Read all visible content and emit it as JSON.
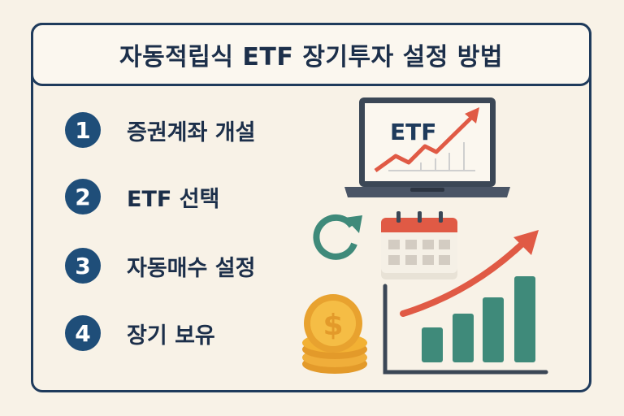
{
  "title": "자동적립식 ETF 장기투자 설정 방법",
  "steps": [
    {
      "number": "1",
      "label": "증권계좌 개설"
    },
    {
      "number": "2",
      "label": "ETF 선택"
    },
    {
      "number": "3",
      "label": "자동매수 설정"
    },
    {
      "number": "4",
      "label": "장기 보유"
    }
  ],
  "illustration": {
    "laptop_text": "ETF",
    "icons": [
      "laptop-chart-icon",
      "refresh-icon",
      "calendar-icon",
      "coins-dollar-icon",
      "bar-chart-growth-icon"
    ]
  },
  "colors": {
    "navy": "#1f3b5c",
    "step_circle": "#1f4e79",
    "arrow_red": "#e05a45",
    "teal": "#3f8a7a",
    "gold": "#f2b134",
    "background": "#f8f2e7"
  }
}
